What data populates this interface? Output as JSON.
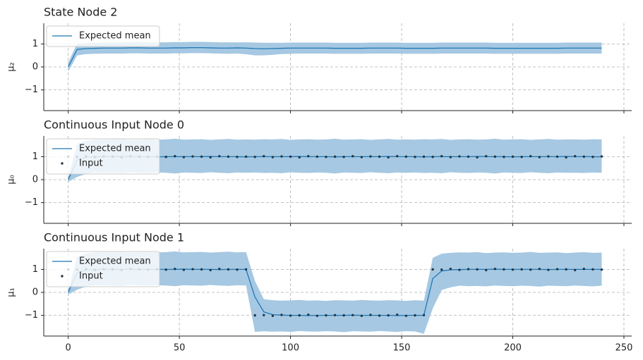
{
  "chart_data": [
    {
      "type": "line",
      "title": "State Node 2",
      "ylabel": "μ₂",
      "x": [
        0,
        4,
        8,
        12,
        16,
        20,
        24,
        28,
        32,
        36,
        40,
        44,
        48,
        52,
        56,
        60,
        64,
        68,
        72,
        76,
        80,
        84,
        88,
        92,
        96,
        100,
        104,
        108,
        112,
        116,
        120,
        124,
        128,
        132,
        136,
        140,
        144,
        148,
        152,
        156,
        160,
        164,
        168,
        172,
        176,
        180,
        184,
        188,
        192,
        196,
        200,
        204,
        208,
        212,
        216,
        220,
        224,
        228,
        232,
        236,
        240
      ],
      "series": [
        {
          "name": "Expected mean",
          "kind": "line",
          "color": "#1f77b4",
          "values": [
            0.0,
            0.76,
            0.8,
            0.81,
            0.82,
            0.82,
            0.82,
            0.83,
            0.83,
            0.82,
            0.82,
            0.82,
            0.83,
            0.83,
            0.84,
            0.84,
            0.83,
            0.82,
            0.82,
            0.83,
            0.82,
            0.8,
            0.79,
            0.8,
            0.81,
            0.82,
            0.82,
            0.82,
            0.82,
            0.82,
            0.81,
            0.81,
            0.81,
            0.81,
            0.82,
            0.82,
            0.82,
            0.82,
            0.81,
            0.81,
            0.81,
            0.81,
            0.82,
            0.82,
            0.82,
            0.82,
            0.82,
            0.82,
            0.81,
            0.81,
            0.81,
            0.81,
            0.81,
            0.81,
            0.81,
            0.81,
            0.82,
            0.82,
            0.82,
            0.82,
            0.82
          ]
        }
      ],
      "band": {
        "color": "#a6c8e2",
        "upper": [
          0.2,
          1.02,
          1.04,
          1.05,
          1.06,
          1.06,
          1.06,
          1.07,
          1.08,
          1.07,
          1.07,
          1.07,
          1.08,
          1.08,
          1.09,
          1.09,
          1.08,
          1.07,
          1.07,
          1.07,
          1.07,
          1.06,
          1.05,
          1.05,
          1.05,
          1.06,
          1.06,
          1.06,
          1.06,
          1.06,
          1.05,
          1.05,
          1.05,
          1.05,
          1.06,
          1.06,
          1.06,
          1.06,
          1.05,
          1.05,
          1.05,
          1.05,
          1.06,
          1.06,
          1.06,
          1.06,
          1.06,
          1.06,
          1.05,
          1.05,
          1.05,
          1.05,
          1.05,
          1.05,
          1.05,
          1.05,
          1.06,
          1.06,
          1.06,
          1.06,
          1.06
        ],
        "lower": [
          -0.2,
          0.5,
          0.56,
          0.57,
          0.58,
          0.58,
          0.58,
          0.59,
          0.59,
          0.58,
          0.58,
          0.58,
          0.59,
          0.59,
          0.6,
          0.6,
          0.59,
          0.58,
          0.57,
          0.58,
          0.55,
          0.5,
          0.5,
          0.53,
          0.56,
          0.57,
          0.58,
          0.58,
          0.58,
          0.58,
          0.57,
          0.57,
          0.57,
          0.57,
          0.58,
          0.58,
          0.58,
          0.58,
          0.57,
          0.57,
          0.57,
          0.57,
          0.58,
          0.58,
          0.58,
          0.58,
          0.58,
          0.58,
          0.57,
          0.57,
          0.57,
          0.57,
          0.57,
          0.57,
          0.57,
          0.57,
          0.58,
          0.58,
          0.58,
          0.58,
          0.58
        ]
      },
      "xlim": [
        -11,
        253.5
      ],
      "ylim": [
        -1.9,
        1.9
      ],
      "xticks": [
        0,
        50,
        100,
        150,
        200,
        250
      ],
      "show_xtick_labels": false,
      "yticks": [
        {
          "value": -1,
          "label": "−1"
        },
        0,
        1
      ],
      "grid": true,
      "legend": "upper left"
    },
    {
      "type": "line",
      "title": "Continuous Input Node 0",
      "ylabel": "μ₀",
      "x": [
        0,
        4,
        8,
        12,
        16,
        20,
        24,
        28,
        32,
        36,
        40,
        44,
        48,
        52,
        56,
        60,
        64,
        68,
        72,
        76,
        80,
        84,
        88,
        92,
        96,
        100,
        104,
        108,
        112,
        116,
        120,
        124,
        128,
        132,
        136,
        140,
        144,
        148,
        152,
        156,
        160,
        164,
        168,
        172,
        176,
        180,
        184,
        188,
        192,
        196,
        200,
        204,
        208,
        212,
        216,
        220,
        224,
        228,
        232,
        236,
        240
      ],
      "series": [
        {
          "name": "Expected mean",
          "kind": "line",
          "color": "#1f77b4",
          "values": [
            0.0,
            0.85,
            0.97,
            0.99,
            1.0,
            1.0,
            1.01,
            1.0,
            1.0,
            1.0,
            0.99,
            1.0,
            1.0,
            1.0,
            1.0,
            1.0,
            1.01,
            1.0,
            1.0,
            1.0,
            0.99,
            1.0,
            1.0,
            1.0,
            1.0,
            1.0,
            1.01,
            1.0,
            1.0,
            1.0,
            0.99,
            1.0,
            1.0,
            1.0,
            1.0,
            1.0,
            1.01,
            1.0,
            1.0,
            1.0,
            0.99,
            1.0,
            1.0,
            1.0,
            1.0,
            1.0,
            1.01,
            1.0,
            1.0,
            1.0,
            0.99,
            1.0,
            1.0,
            1.0,
            1.0,
            1.0,
            1.01,
            1.0,
            1.0,
            1.0,
            0.99
          ]
        },
        {
          "name": "Input",
          "kind": "scatter",
          "color": "#253746",
          "values": [
            1.0,
            0.99,
            1.02,
            0.98,
            1.01,
            1.0,
            0.97,
            1.02,
            1.0,
            0.99,
            1.0,
            0.99,
            1.02,
            0.98,
            1.01,
            1.0,
            0.97,
            1.02,
            1.0,
            0.99,
            1.0,
            0.99,
            1.02,
            0.98,
            1.01,
            1.0,
            0.97,
            1.02,
            1.0,
            0.99,
            1.0,
            0.99,
            1.02,
            0.98,
            1.01,
            1.0,
            0.97,
            1.02,
            1.0,
            0.99,
            1.0,
            0.99,
            1.02,
            0.98,
            1.01,
            1.0,
            0.97,
            1.02,
            1.0,
            0.99,
            1.0,
            0.99,
            1.02,
            0.98,
            1.01,
            1.0,
            0.97,
            1.02,
            1.0,
            0.99,
            1.01
          ]
        }
      ],
      "band": {
        "color": "#a6c8e2",
        "upper": [
          0.1,
          1.55,
          1.7,
          1.74,
          1.76,
          1.75,
          1.77,
          1.73,
          1.75,
          1.76,
          1.74,
          1.75,
          1.78,
          1.74,
          1.75,
          1.76,
          1.73,
          1.75,
          1.77,
          1.74,
          1.75,
          1.74,
          1.76,
          1.75,
          1.77,
          1.73,
          1.75,
          1.76,
          1.74,
          1.75,
          1.78,
          1.74,
          1.75,
          1.76,
          1.73,
          1.75,
          1.77,
          1.74,
          1.75,
          1.74,
          1.76,
          1.75,
          1.77,
          1.73,
          1.75,
          1.76,
          1.74,
          1.75,
          1.78,
          1.74,
          1.75,
          1.76,
          1.73,
          1.75,
          1.77,
          1.74,
          1.75,
          1.75,
          1.74,
          1.76,
          1.75
        ],
        "lower": [
          -0.1,
          0.12,
          0.25,
          0.31,
          0.29,
          0.3,
          0.28,
          0.32,
          0.3,
          0.29,
          0.31,
          0.3,
          0.27,
          0.31,
          0.3,
          0.29,
          0.32,
          0.3,
          0.28,
          0.31,
          0.3,
          0.31,
          0.29,
          0.3,
          0.28,
          0.32,
          0.3,
          0.29,
          0.31,
          0.3,
          0.27,
          0.31,
          0.3,
          0.29,
          0.32,
          0.3,
          0.28,
          0.31,
          0.3,
          0.31,
          0.29,
          0.3,
          0.28,
          0.32,
          0.3,
          0.29,
          0.31,
          0.3,
          0.27,
          0.31,
          0.3,
          0.29,
          0.32,
          0.3,
          0.28,
          0.31,
          0.3,
          0.3,
          0.29,
          0.31,
          0.3
        ]
      },
      "xlim": [
        -11,
        253.5
      ],
      "ylim": [
        -1.9,
        1.9
      ],
      "xticks": [
        0,
        50,
        100,
        150,
        200,
        250
      ],
      "show_xtick_labels": false,
      "yticks": [
        {
          "value": -1,
          "label": "−1"
        },
        0,
        1
      ],
      "grid": true,
      "legend": "upper left"
    },
    {
      "type": "line",
      "title": "Continuous Input Node 1",
      "ylabel": "μ₁",
      "x": [
        0,
        4,
        8,
        12,
        16,
        20,
        24,
        28,
        32,
        36,
        40,
        44,
        48,
        52,
        56,
        60,
        64,
        68,
        72,
        76,
        80,
        84,
        88,
        92,
        96,
        100,
        104,
        108,
        112,
        116,
        120,
        124,
        128,
        132,
        136,
        140,
        144,
        148,
        152,
        156,
        160,
        164,
        168,
        172,
        176,
        180,
        184,
        188,
        192,
        196,
        200,
        204,
        208,
        212,
        216,
        220,
        224,
        228,
        232,
        236,
        240
      ],
      "series": [
        {
          "name": "Expected mean",
          "kind": "line",
          "color": "#1f77b4",
          "values": [
            0.0,
            0.85,
            0.97,
            0.99,
            1.0,
            1.0,
            1.0,
            1.0,
            1.0,
            1.0,
            1.0,
            1.0,
            1.0,
            1.01,
            1.0,
            1.0,
            1.0,
            0.99,
            1.0,
            1.0,
            1.0,
            -0.2,
            -0.85,
            -0.97,
            -0.99,
            -1.0,
            -1.0,
            -1.01,
            -1.0,
            -1.0,
            -1.0,
            -1.0,
            -0.99,
            -1.0,
            -1.0,
            -1.0,
            -1.0,
            -1.01,
            -1.0,
            -1.0,
            -1.0,
            0.6,
            0.93,
            0.98,
            0.99,
            1.0,
            1.0,
            1.0,
            1.01,
            1.0,
            1.0,
            1.0,
            1.0,
            1.0,
            0.99,
            1.0,
            1.0,
            1.0,
            1.0,
            1.0,
            1.0
          ]
        },
        {
          "name": "Input",
          "kind": "scatter",
          "color": "#253746",
          "values": [
            1.0,
            0.99,
            1.02,
            0.98,
            1.01,
            1.0,
            0.97,
            1.02,
            1.0,
            0.99,
            1.0,
            0.99,
            1.02,
            0.98,
            1.01,
            1.0,
            0.97,
            1.02,
            1.0,
            0.99,
            1.0,
            -1.0,
            -0.99,
            -1.02,
            -0.98,
            -1.01,
            -1.0,
            -0.97,
            -1.02,
            -1.0,
            -0.99,
            -1.0,
            -0.99,
            -1.02,
            -0.98,
            -1.01,
            -1.0,
            -0.97,
            -1.02,
            -1.0,
            -0.99,
            1.0,
            0.99,
            1.02,
            0.98,
            1.01,
            1.0,
            0.97,
            1.02,
            1.0,
            0.99,
            1.0,
            0.99,
            1.02,
            0.98,
            1.01,
            1.0,
            0.97,
            1.02,
            1.0,
            0.99
          ]
        }
      ],
      "band": {
        "color": "#a6c8e2",
        "upper": [
          0.1,
          1.55,
          1.7,
          1.74,
          1.76,
          1.75,
          1.77,
          1.73,
          1.75,
          1.76,
          1.74,
          1.75,
          1.78,
          1.74,
          1.75,
          1.76,
          1.73,
          1.75,
          1.77,
          1.74,
          1.75,
          0.5,
          -0.3,
          -0.34,
          -0.36,
          -0.35,
          -0.33,
          -0.36,
          -0.35,
          -0.37,
          -0.34,
          -0.35,
          -0.36,
          -0.33,
          -0.35,
          -0.36,
          -0.34,
          -0.35,
          -0.37,
          -0.34,
          -0.36,
          1.5,
          1.68,
          1.72,
          1.74,
          1.73,
          1.75,
          1.71,
          1.73,
          1.74,
          1.72,
          1.73,
          1.76,
          1.72,
          1.73,
          1.74,
          1.71,
          1.73,
          1.75,
          1.72,
          1.73
        ],
        "lower": [
          -0.1,
          0.12,
          0.25,
          0.31,
          0.29,
          0.3,
          0.28,
          0.32,
          0.3,
          0.29,
          0.31,
          0.3,
          0.27,
          0.31,
          0.3,
          0.29,
          0.32,
          0.3,
          0.28,
          0.31,
          0.3,
          -1.72,
          -1.69,
          -1.71,
          -1.7,
          -1.72,
          -1.68,
          -1.7,
          -1.71,
          -1.69,
          -1.7,
          -1.73,
          -1.69,
          -1.7,
          -1.71,
          -1.68,
          -1.7,
          -1.72,
          -1.69,
          -1.7,
          -1.8,
          -0.7,
          0.1,
          0.22,
          0.29,
          0.27,
          0.28,
          0.26,
          0.3,
          0.28,
          0.27,
          0.29,
          0.28,
          0.25,
          0.29,
          0.28,
          0.27,
          0.3,
          0.28,
          0.26,
          0.29
        ]
      },
      "xlim": [
        -11,
        253.5
      ],
      "ylim": [
        -1.9,
        1.9
      ],
      "xticks": [
        0,
        50,
        100,
        150,
        200,
        250
      ],
      "show_xtick_labels": true,
      "yticks": [
        {
          "value": -1,
          "label": "−1"
        },
        0,
        1
      ],
      "grid": true,
      "legend": "upper left"
    }
  ]
}
